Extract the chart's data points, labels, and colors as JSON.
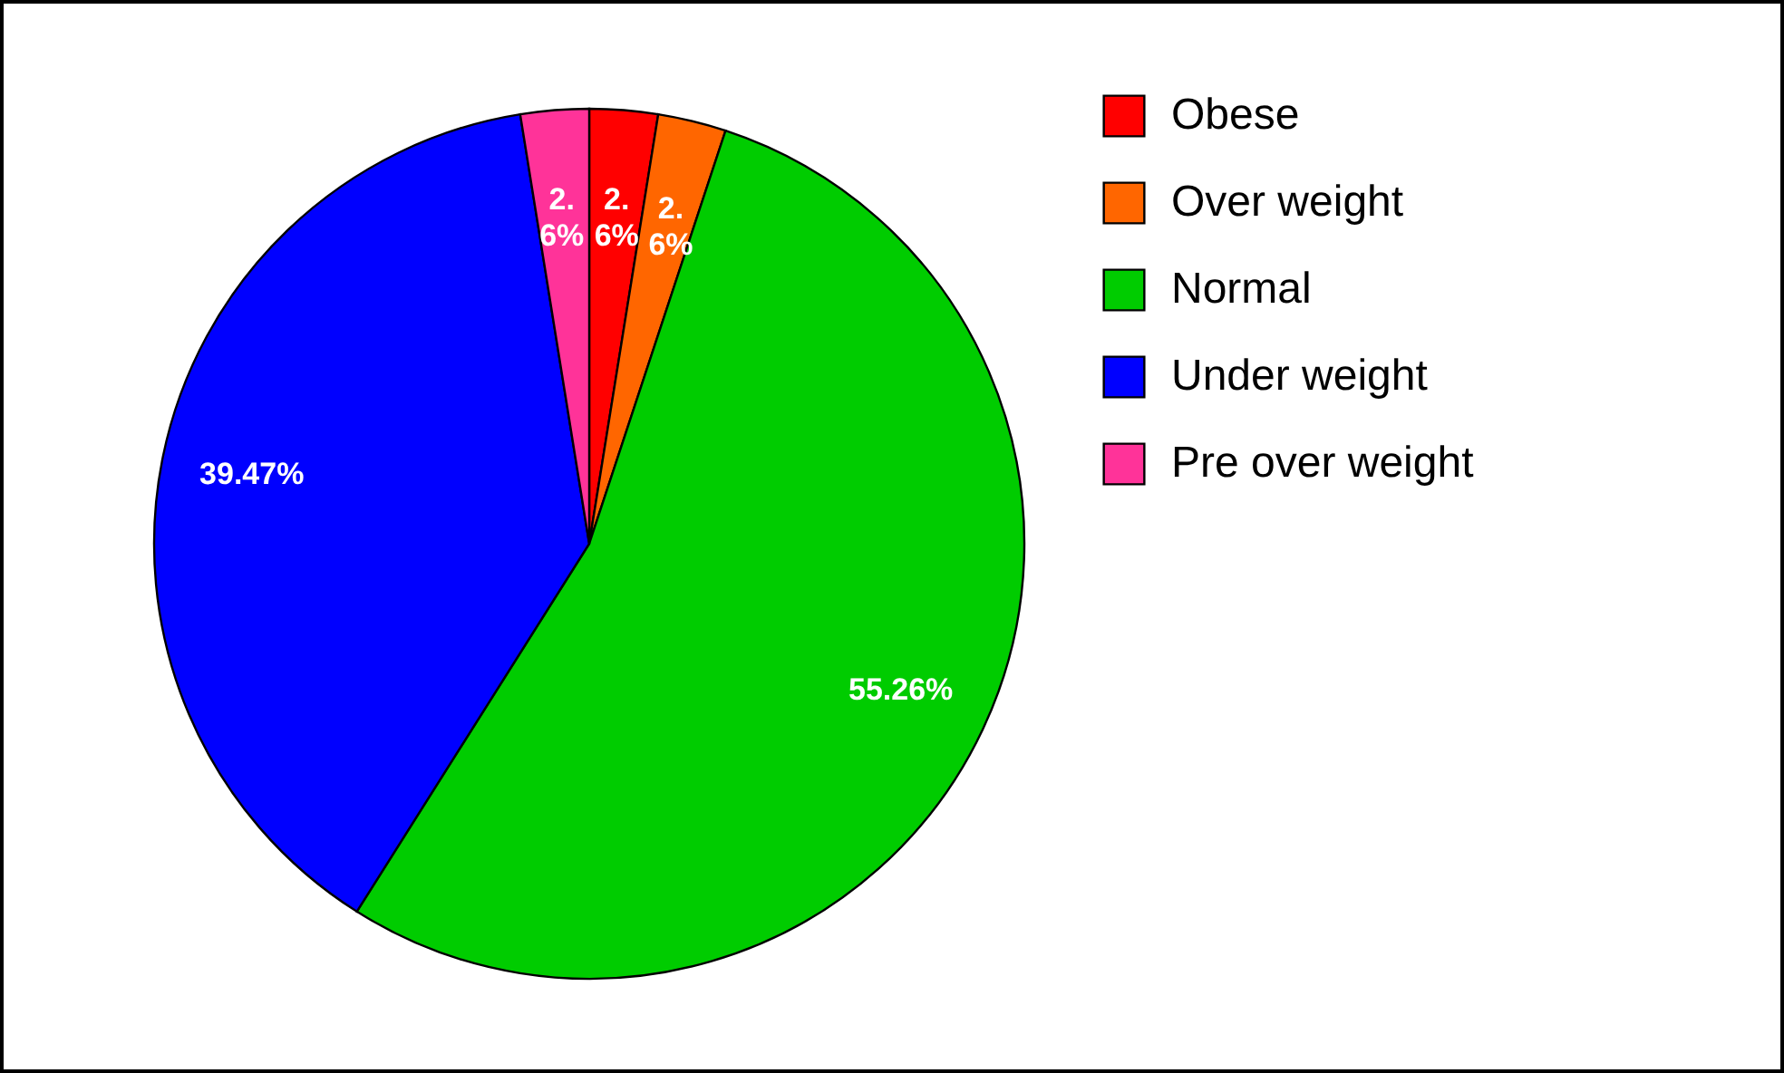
{
  "chart_data": {
    "type": "pie",
    "categories": [
      "Obese",
      "Over weight",
      " Normal",
      "Under weight",
      "Pre over weight"
    ],
    "values": [
      2.6,
      2.6,
      55.26,
      39.47,
      2.6
    ],
    "colors": [
      "#ff0000",
      "#ff6600",
      "#00cc00",
      "#0000ff",
      "#ff3399"
    ],
    "value_labels": [
      "2.6%",
      "2.6%",
      "55.26%",
      "39.47%",
      "2.6%"
    ],
    "legend": "top right"
  }
}
